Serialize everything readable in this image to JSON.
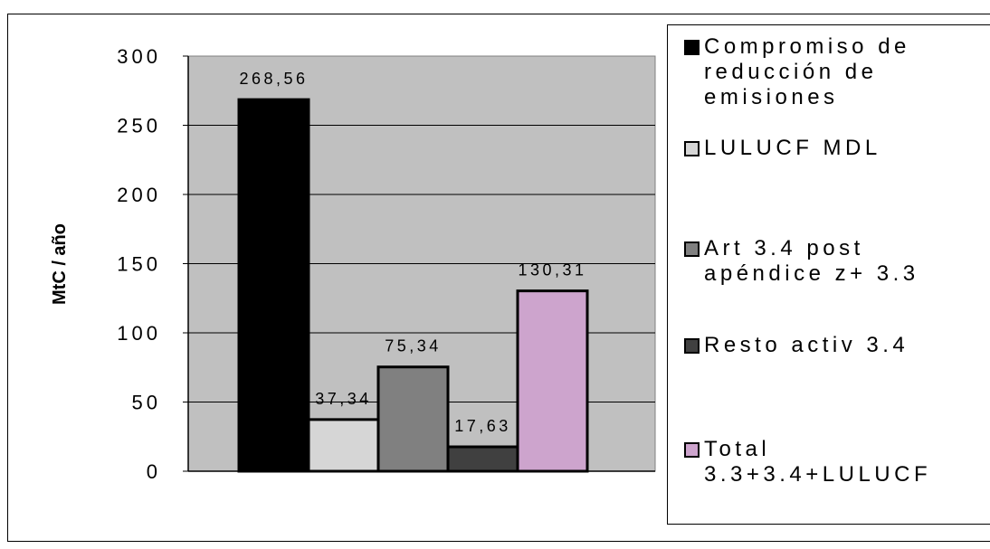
{
  "chart_data": {
    "type": "bar",
    "ylabel": "MtC / año",
    "ylim": [
      0,
      300
    ],
    "yticks": [
      "0",
      "50",
      "100",
      "150",
      "200",
      "250",
      "300"
    ],
    "grid": true,
    "legend_position": "right",
    "series": [
      {
        "name": "Compromiso de reducción de emisiones",
        "value": 268.56,
        "label": "268,56",
        "color": "#000000"
      },
      {
        "name": "LULUCF MDL",
        "value": 37.34,
        "label": "37,34",
        "color": "#d6d6d6"
      },
      {
        "name": "Art 3.4 post apéndice z+  3.3",
        "value": 75.34,
        "label": "75,34",
        "color": "#808080"
      },
      {
        "name": "Resto activ 3.4",
        "value": 17.63,
        "label": "17,63",
        "color": "#404040"
      },
      {
        "name": "Total 3.3+3.4+LULUCF",
        "value": 130.31,
        "label": "130,31",
        "color": "#cda4cd"
      }
    ]
  },
  "legend": {
    "items": [
      {
        "label": "Compromiso de\nreducción de\nemisiones",
        "color": "#000000"
      },
      {
        "label": "LULUCF MDL",
        "color": "#d6d6d6"
      },
      {
        "label": "Art 3.4 post\napéndice z+  3.3",
        "color": "#808080"
      },
      {
        "label": "Resto activ 3.4",
        "color": "#404040"
      },
      {
        "label": "Total\n3.3+3.4+LULUCF",
        "color": "#cda4cd"
      }
    ]
  },
  "plot_background": "#c0c0c0"
}
